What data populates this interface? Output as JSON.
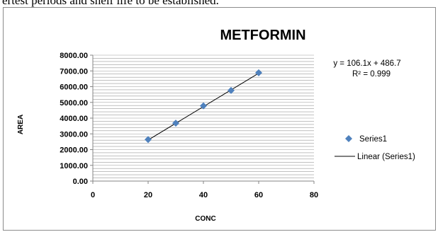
{
  "top_text": "ertest periods and shelf life to be established.",
  "chart_data": {
    "type": "scatter",
    "title": "METFORMIN",
    "xlabel": "CONC",
    "ylabel": "AREA",
    "xlim": [
      0,
      80
    ],
    "ylim": [
      0,
      8000
    ],
    "x_ticks": [
      0,
      20,
      40,
      60,
      80
    ],
    "x_tick_labels": [
      "0",
      "20",
      "40",
      "60",
      "80"
    ],
    "y_ticks": [
      0,
      1000,
      2000,
      3000,
      4000,
      5000,
      6000,
      7000,
      8000
    ],
    "y_tick_labels": [
      "0.00",
      "1000.00",
      "2000.00",
      "3000.00",
      "4000.00",
      "5000.00",
      "6000.00",
      "7000.00",
      "8000.00"
    ],
    "grid": "horizontal",
    "series": [
      {
        "name": "Series1",
        "x": [
          20,
          30,
          40,
          50,
          60
        ],
        "y": [
          2640,
          3680,
          4780,
          5760,
          6880
        ],
        "color": "#4f81bd",
        "marker": "diamond"
      }
    ],
    "trendline": {
      "name": "Linear (Series1)",
      "slope": 106.1,
      "intercept": 486.7,
      "x_range": [
        20,
        60
      ],
      "color": "#000000"
    },
    "equation_text": "y = 106.1x + 486.7",
    "r2_text": "R² = 0.999",
    "legend": {
      "position": "right",
      "entries": [
        "Series1",
        "Linear (Series1)"
      ]
    }
  }
}
